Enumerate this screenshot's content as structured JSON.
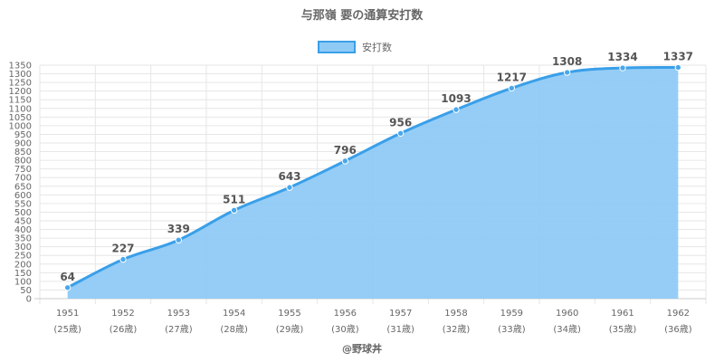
{
  "chart_data": {
    "type": "area",
    "title": "与那嶺 要の通算安打数",
    "categories": [
      "1951",
      "1952",
      "1953",
      "1954",
      "1955",
      "1956",
      "1957",
      "1958",
      "1959",
      "1960",
      "1961",
      "1962"
    ],
    "category_sublabels": [
      "(25歳)",
      "(26歳)",
      "(27歳)",
      "(28歳)",
      "(29歳)",
      "(30歳)",
      "(31歳)",
      "(32歳)",
      "(33歳)",
      "(34歳)",
      "(35歳)",
      "(36歳)"
    ],
    "series": [
      {
        "name": "安打数",
        "values": [
          64,
          227,
          339,
          511,
          643,
          796,
          956,
          1093,
          1217,
          1308,
          1334,
          1337
        ]
      }
    ],
    "ylim": [
      0,
      1350
    ],
    "ytick_step": 50,
    "grid": true,
    "legend_position": "top",
    "colors": {
      "fill": "#8fcaf5",
      "line": "#3a9fe8",
      "point": "#4aa8ec"
    },
    "credit": "@野球丼"
  }
}
